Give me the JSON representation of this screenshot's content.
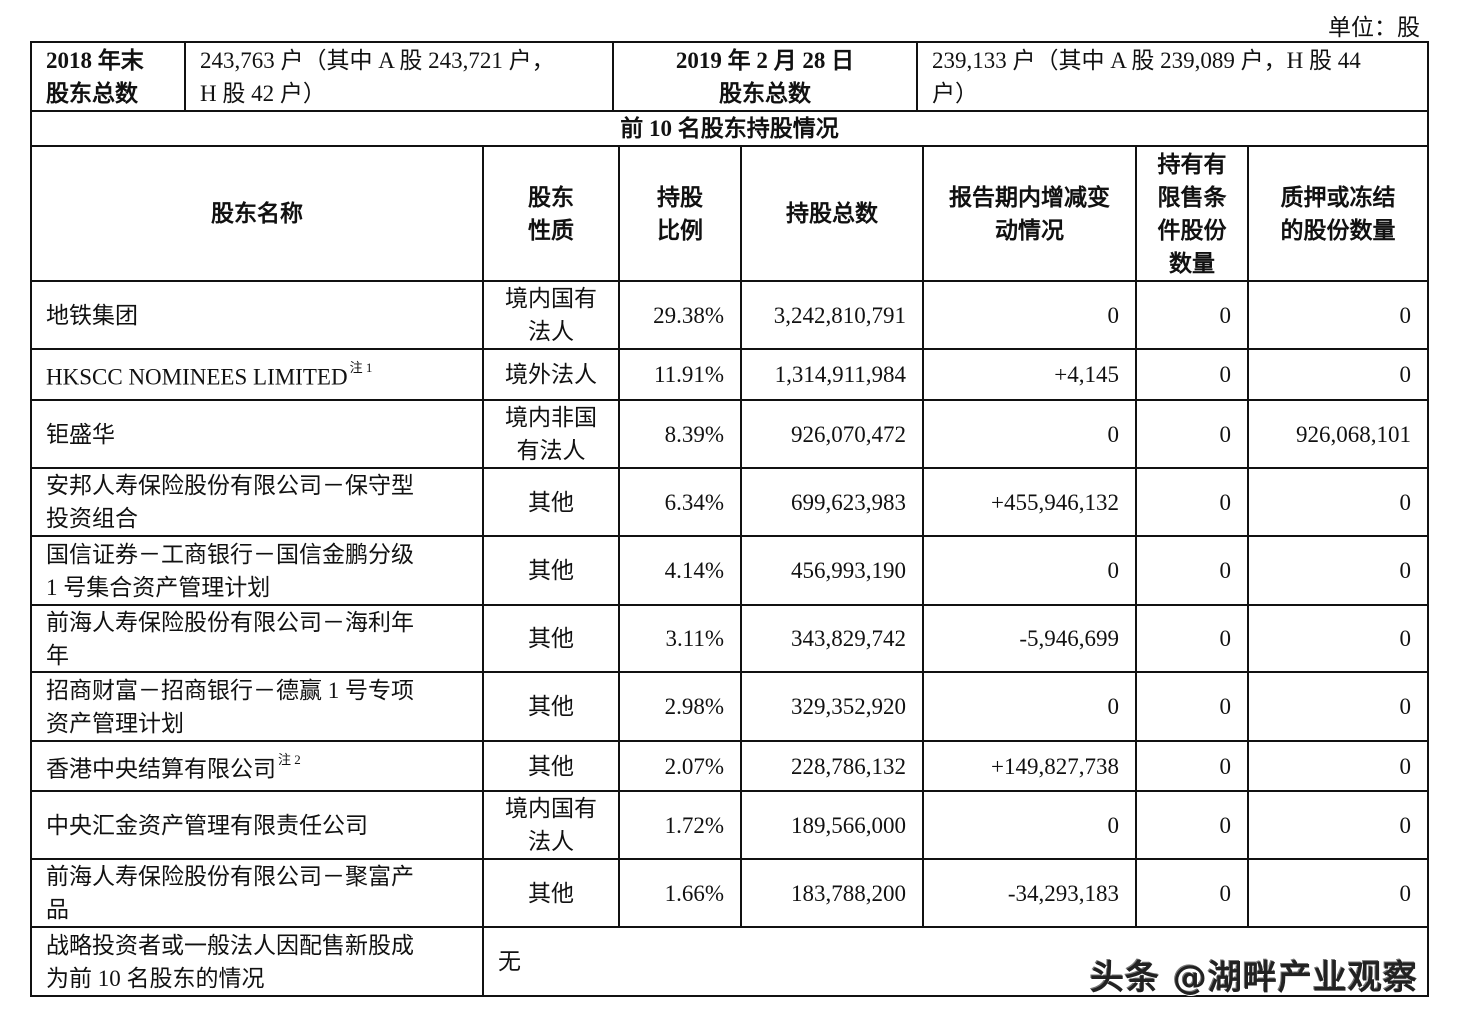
{
  "unit_label": "单位：股",
  "summary": {
    "label_2018": "2018年末\n股东总数",
    "label_2018_line1": "2018 年末",
    "label_2018_line2": "股东总数",
    "value_2018_line1": "243,763 户（其中 A 股 243,721 户，",
    "value_2018_line2": "H 股 42 户）",
    "label_2019_line1": "2019 年 2 月 28 日",
    "label_2019_line2": "股东总数",
    "value_2019_line1": "239,133 户（其中 A 股 239,089 户，H 股 44",
    "value_2019_line2": "户）"
  },
  "section_title": "前 10 名股东持股情况",
  "table": {
    "headers": {
      "name": "股东名称",
      "nature_line1": "股东",
      "nature_line2": "性质",
      "ratio_line1": "持股",
      "ratio_line2": "比例",
      "total": "持股总数",
      "change_line1": "报告期内增减变",
      "change_line2": "动情况",
      "restricted_line1": "持有有",
      "restricted_line2": "限售条",
      "restricted_line3": "件股份",
      "restricted_line4": "数量",
      "pledged_line1": "质押或冻结",
      "pledged_line2": "的股份数量"
    },
    "rows": [
      {
        "name_line1": "地铁集团",
        "name_line2": "",
        "note": "",
        "nature_line1": "境内国有",
        "nature_line2": "法人",
        "ratio": "29.38%",
        "total": "3,242,810,791",
        "change": "0",
        "restricted": "0",
        "pledged": "0"
      },
      {
        "name_line1": "HKSCC NOMINEES LIMITED",
        "name_line2": "",
        "note": "注 1",
        "nature_line1": "境外法人",
        "nature_line2": "",
        "ratio": "11.91%",
        "total": "1,314,911,984",
        "change": "+4,145",
        "restricted": "0",
        "pledged": "0"
      },
      {
        "name_line1": "钜盛华",
        "name_line2": "",
        "note": "",
        "nature_line1": "境内非国",
        "nature_line2": "有法人",
        "ratio": "8.39%",
        "total": "926,070,472",
        "change": "0",
        "restricted": "0",
        "pledged": "926,068,101"
      },
      {
        "name_line1": "安邦人寿保险股份有限公司－保守型",
        "name_line2": "投资组合",
        "note": "",
        "nature_line1": "其他",
        "nature_line2": "",
        "ratio": "6.34%",
        "total": "699,623,983",
        "change": "+455,946,132",
        "restricted": "0",
        "pledged": "0"
      },
      {
        "name_line1": "国信证券－工商银行－国信金鹏分级",
        "name_line2": "1 号集合资产管理计划",
        "note": "",
        "nature_line1": "其他",
        "nature_line2": "",
        "ratio": "4.14%",
        "total": "456,993,190",
        "change": "0",
        "restricted": "0",
        "pledged": "0"
      },
      {
        "name_line1": "前海人寿保险股份有限公司－海利年",
        "name_line2": "年",
        "note": "",
        "nature_line1": "其他",
        "nature_line2": "",
        "ratio": "3.11%",
        "total": "343,829,742",
        "change": "-5,946,699",
        "restricted": "0",
        "pledged": "0"
      },
      {
        "name_line1": "招商财富－招商银行－德赢 1 号专项",
        "name_line2": "资产管理计划",
        "note": "",
        "nature_line1": "其他",
        "nature_line2": "",
        "ratio": "2.98%",
        "total": "329,352,920",
        "change": "0",
        "restricted": "0",
        "pledged": "0"
      },
      {
        "name_line1": "香港中央结算有限公司",
        "name_line2": "",
        "note": "注 2",
        "nature_line1": "其他",
        "nature_line2": "",
        "ratio": "2.07%",
        "total": "228,786,132",
        "change": "+149,827,738",
        "restricted": "0",
        "pledged": "0"
      },
      {
        "name_line1": "中央汇金资产管理有限责任公司",
        "name_line2": "",
        "note": "",
        "nature_line1": "境内国有",
        "nature_line2": "法人",
        "ratio": "1.72%",
        "total": "189,566,000",
        "change": "0",
        "restricted": "0",
        "pledged": "0"
      },
      {
        "name_line1": "前海人寿保险股份有限公司－聚富产",
        "name_line2": "品",
        "note": "",
        "nature_line1": "其他",
        "nature_line2": "",
        "ratio": "1.66%",
        "total": "183,788,200",
        "change": "-34,293,183",
        "restricted": "0",
        "pledged": "0"
      }
    ],
    "footer": {
      "label_line1": "战略投资者或一般法人因配售新股成",
      "label_line2": "为前 10 名股东的情况",
      "value": "无"
    }
  },
  "watermark": "头条 @湖畔产业观察"
}
